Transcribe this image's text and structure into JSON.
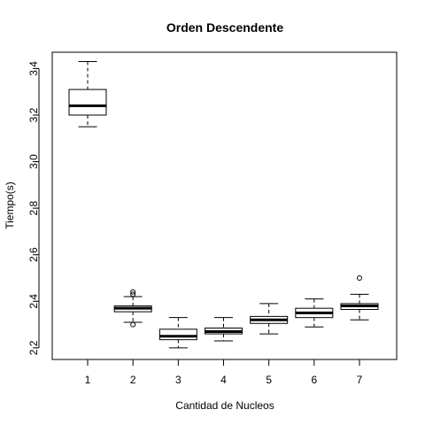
{
  "chart_data": {
    "type": "boxplot",
    "title": "Orden Descendente",
    "xlabel": "Cantidad de Nucleos",
    "ylabel": "Tiempo(s)",
    "ylim": [
      2.15,
      3.47
    ],
    "y_ticks": [
      "2.2",
      "2.4",
      "2.6",
      "2.8",
      "3.0",
      "3.2",
      "3.4"
    ],
    "categories": [
      "1",
      "2",
      "3",
      "4",
      "5",
      "6",
      "7"
    ],
    "boxes": [
      {
        "min": 3.15,
        "q1": 3.2,
        "median": 3.24,
        "q3": 3.31,
        "max": 3.43,
        "outliers": []
      },
      {
        "min": 2.31,
        "q1": 2.355,
        "median": 2.37,
        "q3": 2.38,
        "max": 2.42,
        "outliers": [
          2.3,
          2.43,
          2.44
        ]
      },
      {
        "min": 2.2,
        "q1": 2.235,
        "median": 2.25,
        "q3": 2.28,
        "max": 2.33,
        "outliers": []
      },
      {
        "min": 2.23,
        "q1": 2.26,
        "median": 2.27,
        "q3": 2.285,
        "max": 2.33,
        "outliers": []
      },
      {
        "min": 2.26,
        "q1": 2.305,
        "median": 2.32,
        "q3": 2.335,
        "max": 2.39,
        "outliers": []
      },
      {
        "min": 2.29,
        "q1": 2.33,
        "median": 2.35,
        "q3": 2.37,
        "max": 2.41,
        "outliers": []
      },
      {
        "min": 2.32,
        "q1": 2.365,
        "median": 2.38,
        "q3": 2.39,
        "max": 2.43,
        "outliers": [
          2.5
        ]
      }
    ]
  }
}
